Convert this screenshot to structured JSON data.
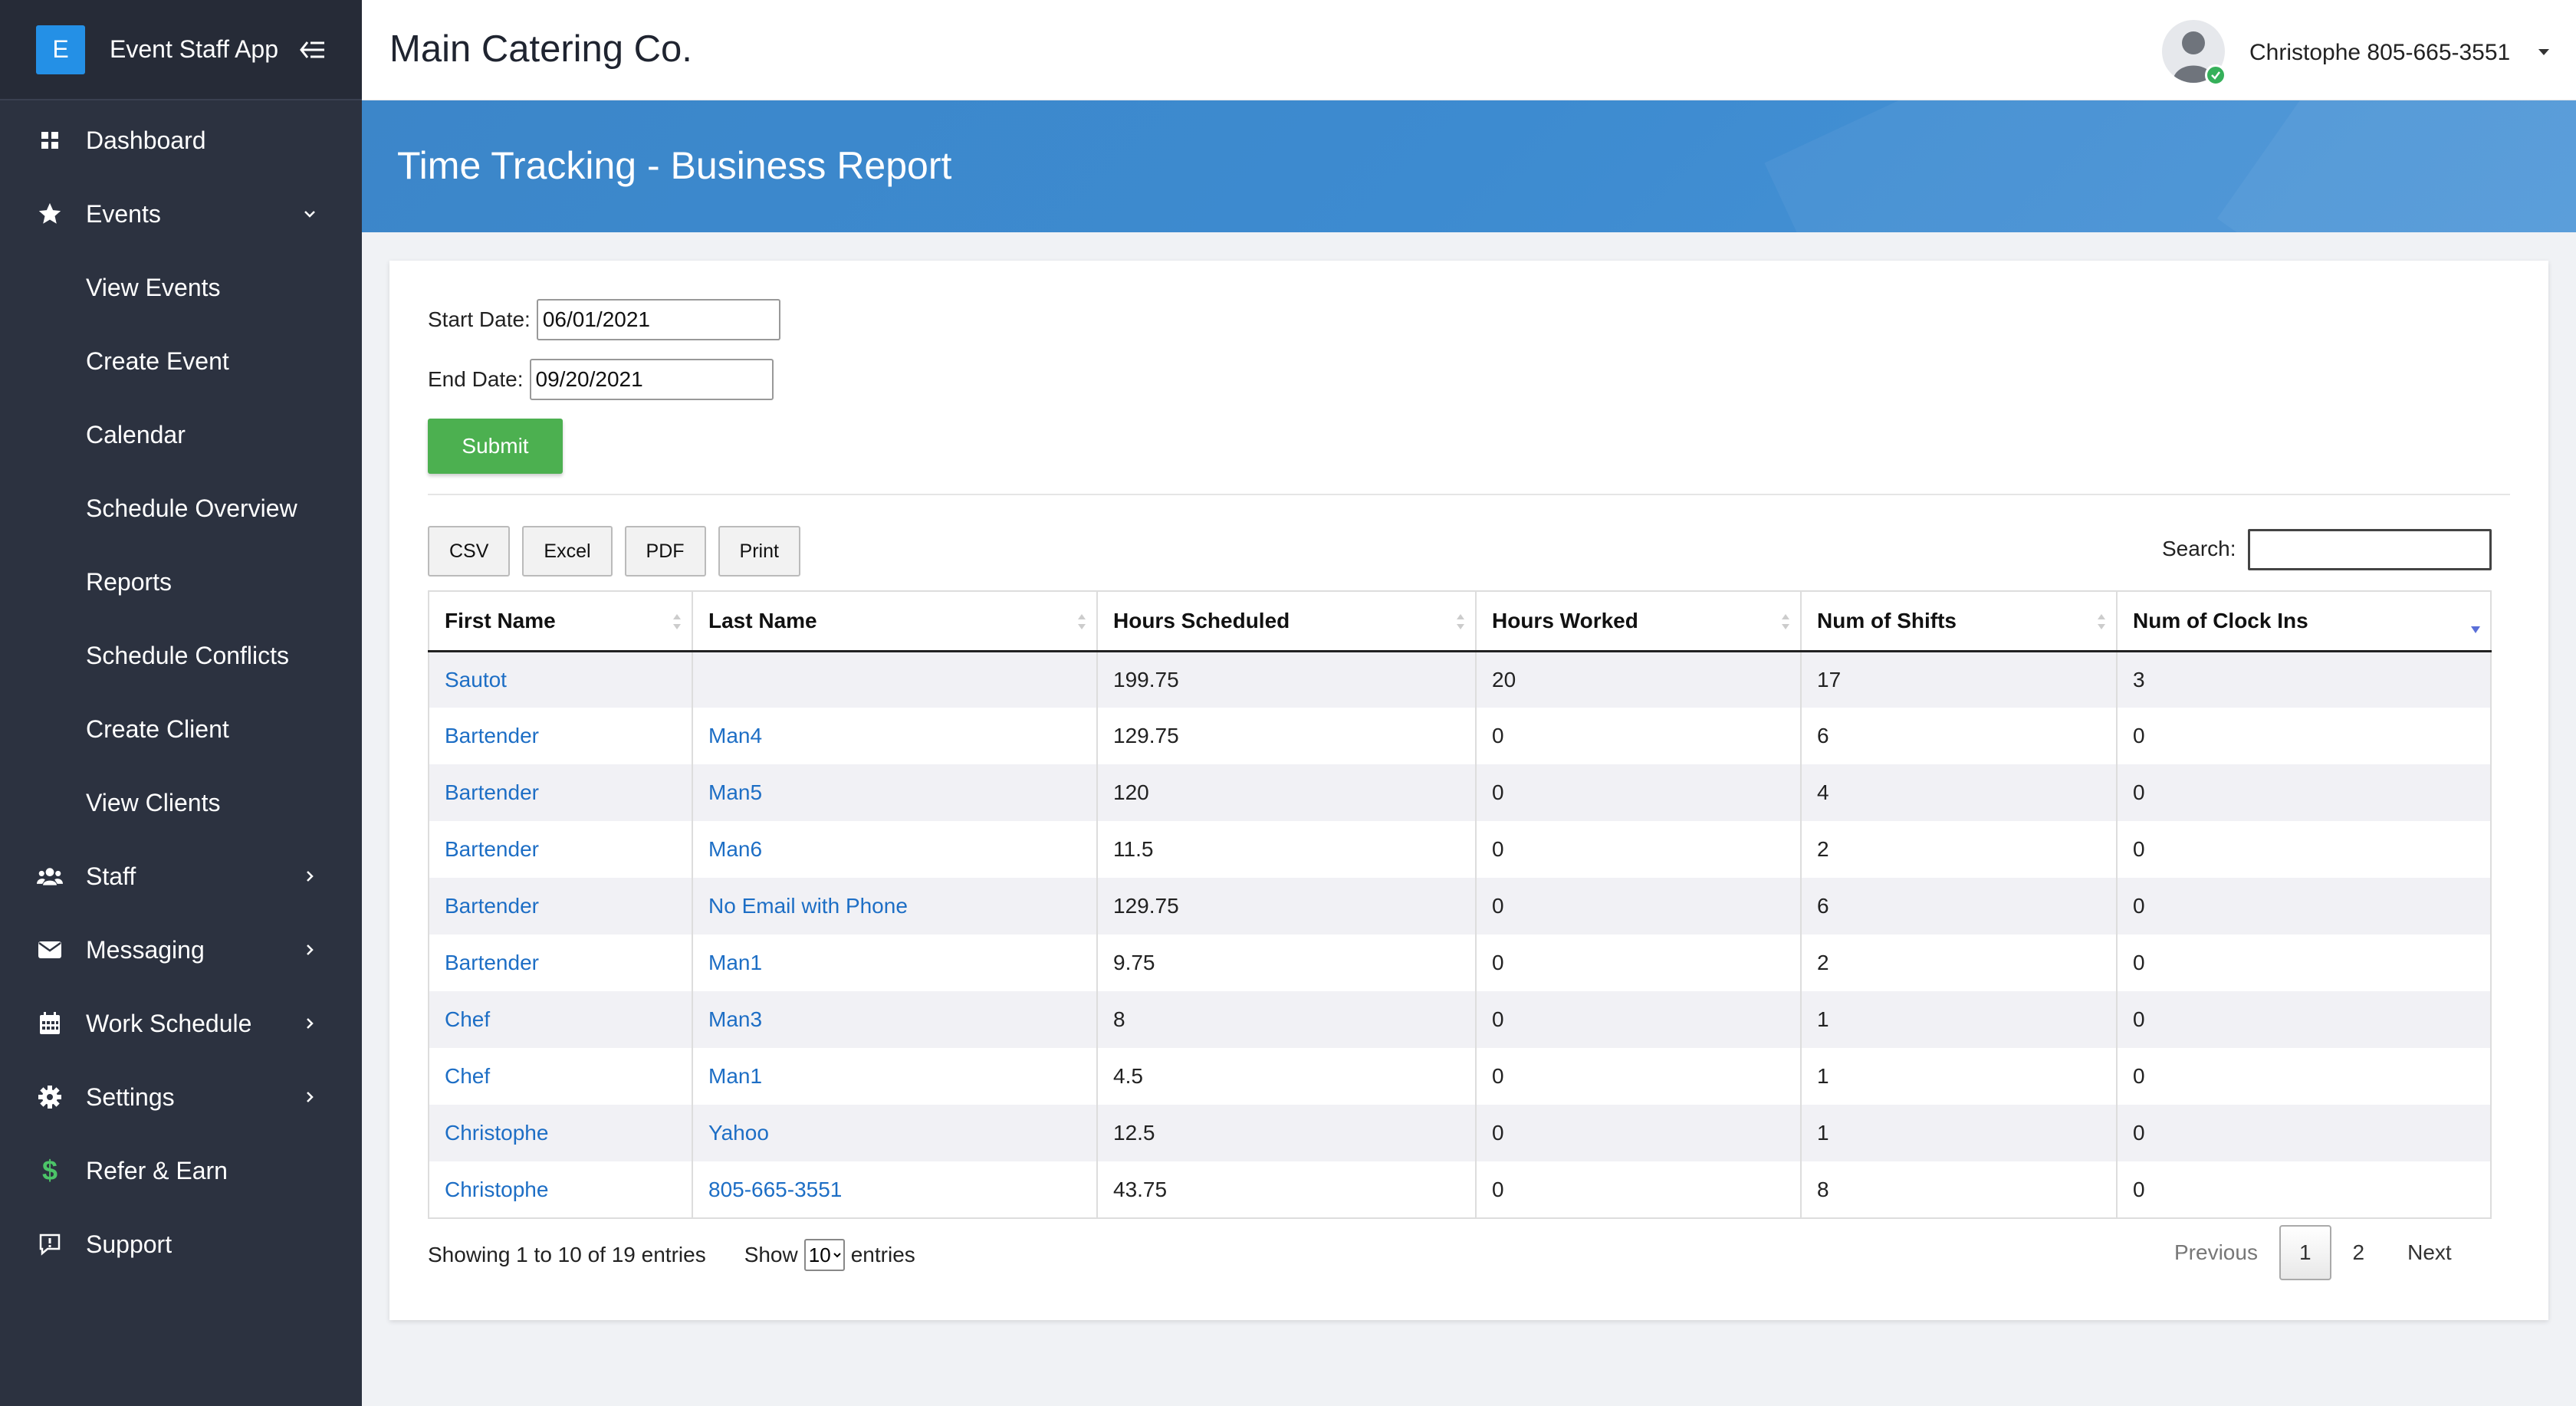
{
  "app": {
    "logo_letter": "E",
    "name": "Event Staff App"
  },
  "sidebar": {
    "items": [
      {
        "label": "Dashboard",
        "icon": "dashboard-icon"
      },
      {
        "label": "Events",
        "icon": "star-icon",
        "expanded": true
      },
      {
        "label": "View Events"
      },
      {
        "label": "Create Event"
      },
      {
        "label": "Calendar"
      },
      {
        "label": "Schedule Overview"
      },
      {
        "label": "Reports"
      },
      {
        "label": "Schedule Conflicts"
      },
      {
        "label": "Create Client"
      },
      {
        "label": "View Clients"
      },
      {
        "label": "Staff",
        "icon": "users-icon"
      },
      {
        "label": "Messaging",
        "icon": "envelope-icon"
      },
      {
        "label": "Work Schedule",
        "icon": "calendar-icon"
      },
      {
        "label": "Settings",
        "icon": "gear-icon"
      },
      {
        "label": "Refer & Earn",
        "icon": "dollar-icon"
      },
      {
        "label": "Support",
        "icon": "support-icon"
      }
    ]
  },
  "header": {
    "company": "Main Catering Co.",
    "user": "Christophe 805-665-3551"
  },
  "page": {
    "title": "Time Tracking - Business Report"
  },
  "form": {
    "start_label": "Start Date:",
    "start_value": "06/01/2021",
    "end_label": "End Date:",
    "end_value": "09/20/2021",
    "submit": "Submit"
  },
  "toolbar": {
    "csv": "CSV",
    "excel": "Excel",
    "pdf": "PDF",
    "print": "Print",
    "search_label": "Search:"
  },
  "table": {
    "columns": [
      "First Name",
      "Last Name",
      "Hours Scheduled",
      "Hours Worked",
      "Num of Shifts",
      "Num of Clock Ins"
    ],
    "rows": [
      [
        "Sautot",
        "",
        "199.75",
        "20",
        "17",
        "3"
      ],
      [
        "Bartender",
        "Man4",
        "129.75",
        "0",
        "6",
        "0"
      ],
      [
        "Bartender",
        "Man5",
        "120",
        "0",
        "4",
        "0"
      ],
      [
        "Bartender",
        "Man6",
        "11.5",
        "0",
        "2",
        "0"
      ],
      [
        "Bartender",
        "No Email with Phone",
        "129.75",
        "0",
        "6",
        "0"
      ],
      [
        "Bartender",
        "Man1",
        "9.75",
        "0",
        "2",
        "0"
      ],
      [
        "Chef",
        "Man3",
        "8",
        "0",
        "1",
        "0"
      ],
      [
        "Chef",
        "Man1",
        "4.5",
        "0",
        "1",
        "0"
      ],
      [
        "Christophe",
        "Yahoo",
        "12.5",
        "0",
        "1",
        "0"
      ],
      [
        "Christophe",
        "805-665-3551",
        "43.75",
        "0",
        "8",
        "0"
      ]
    ]
  },
  "footer": {
    "info": "Showing 1 to 10 of 19 entries",
    "show": "Show",
    "page_size": "10",
    "entries": "entries",
    "previous": "Previous",
    "page1": "1",
    "page2": "2",
    "next": "Next"
  },
  "colors": {
    "sidebar": "#2c3240",
    "banner": "#3d8bd0",
    "submit": "#4cb050",
    "link": "#1d6ec5",
    "refer_icon": "#4cc468"
  }
}
